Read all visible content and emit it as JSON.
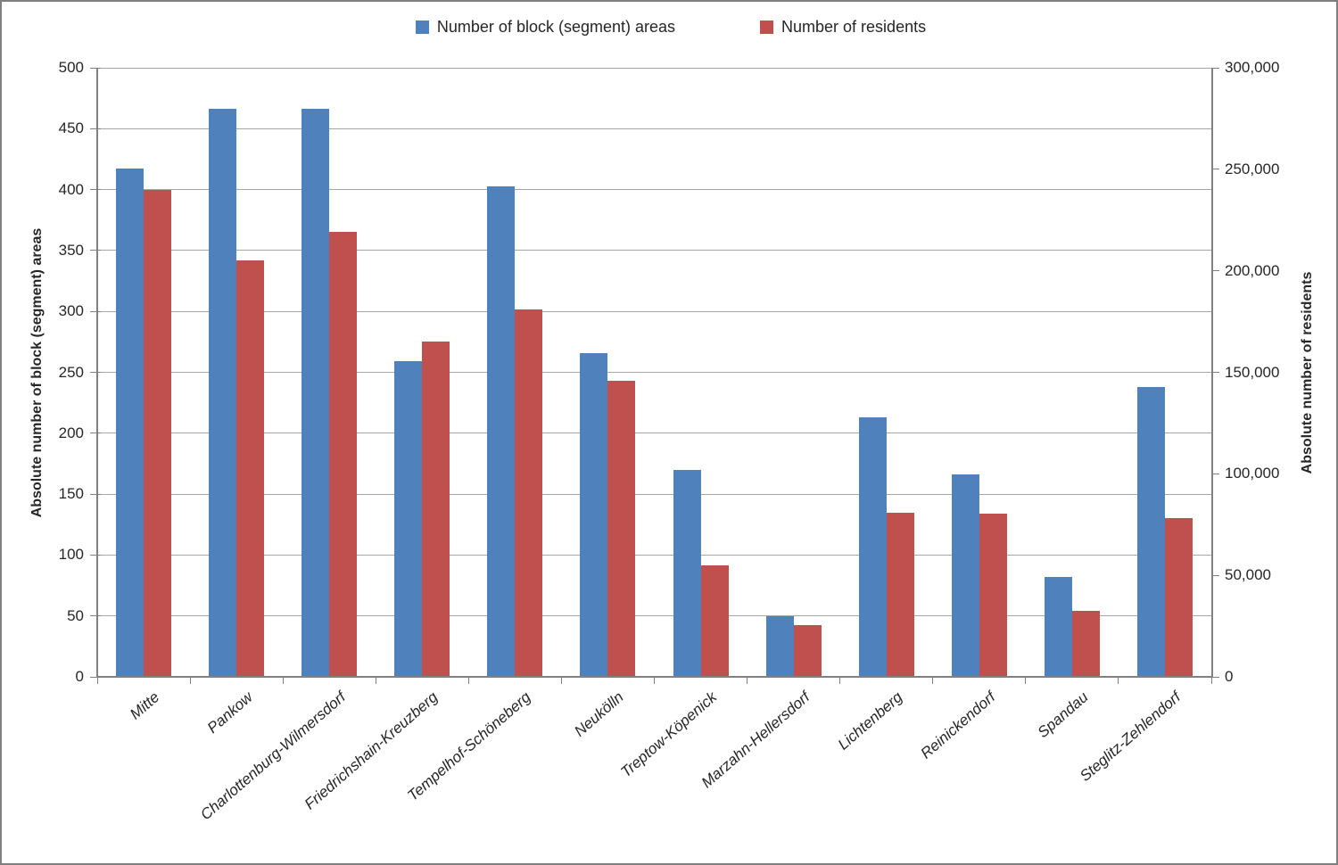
{
  "colors": {
    "series_blocks": "#4F81BD",
    "series_residents": "#C0504D",
    "grid": "#A6A6A6",
    "axis": "#808080",
    "text": "#262626",
    "frame_border": "#7F7F7F",
    "background": "#FFFFFF"
  },
  "chart_data": {
    "type": "bar",
    "title": "",
    "categories": [
      "Mitte",
      "Pankow",
      "Charlottenburg-Wilmersdorf",
      "Friedrichshain-Kreuzberg",
      "Tempelhof-Schöneberg",
      "Neukölln",
      "Treptow-Köpenick",
      "Marzahn-Hellersdorf",
      "Lichtenberg",
      "Reinickendorf",
      "Spandau",
      "Steglitz-Zehlendorf"
    ],
    "series": [
      {
        "name": "Number of block (segment) areas",
        "axis": "left",
        "color": "#4F81BD",
        "values": [
          417,
          466,
          466,
          259,
          403,
          266,
          170,
          50,
          213,
          166,
          82,
          238
        ]
      },
      {
        "name": "Number of residents",
        "axis": "right",
        "color": "#C0504D",
        "values": [
          240000,
          205000,
          219000,
          165000,
          181000,
          146000,
          55000,
          25500,
          81000,
          80500,
          32500,
          78000
        ]
      }
    ],
    "left_axis": {
      "title": "Absolute number of block (segment) areas",
      "min": 0,
      "max": 500,
      "step": 50,
      "tick_labels": [
        "0",
        "50",
        "100",
        "150",
        "200",
        "250",
        "300",
        "350",
        "400",
        "450",
        "500"
      ]
    },
    "right_axis": {
      "title": "Absolute number of residents",
      "min": 0,
      "max": 300000,
      "step": 50000,
      "tick_labels": [
        "0",
        "50,000",
        "100,000",
        "150,000",
        "200,000",
        "250,000",
        "300,000"
      ]
    },
    "grid": true,
    "legend_position": "top"
  }
}
